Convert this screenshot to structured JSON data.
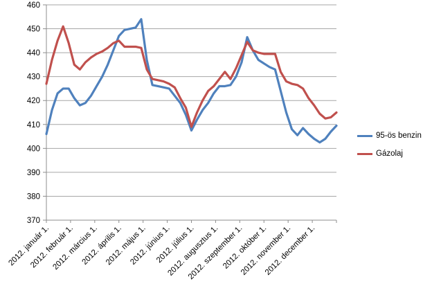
{
  "chart_data": {
    "type": "line",
    "title": "",
    "grid": true,
    "legend_position": "right",
    "x_axis": {
      "labels": [
        "2012. január 1.",
        "2012. február 1.",
        "2012. március 1.",
        "2012. április 1.",
        "2012. május 1.",
        "2012. június 1.",
        "2012. július 1.",
        "2012. augusztus 1.",
        "2012. szeptember 1.",
        "2012. október 1.",
        "2012. november 1.",
        "2012. december 1."
      ],
      "tick_count": 13,
      "points_per_interval": "weekly data, ~4.33 points per month"
    },
    "y_axis": {
      "min": 370,
      "max": 460,
      "step": 10,
      "tick_labels": [
        "370",
        "380",
        "390",
        "400",
        "410",
        "420",
        "430",
        "440",
        "450",
        "460"
      ]
    },
    "series": [
      {
        "name": "95-ös benzin",
        "color": "#4F81BD",
        "values": [
          406,
          416,
          423,
          425,
          425,
          421,
          418,
          419,
          422,
          426,
          430,
          435,
          441,
          447,
          449.5,
          450,
          450.5,
          454,
          437,
          426.5,
          426,
          425.5,
          425,
          422,
          419,
          414,
          407.5,
          412,
          416,
          419,
          423,
          426,
          426,
          426.5,
          430,
          436,
          446.5,
          441,
          437,
          435.5,
          434,
          433,
          424,
          415,
          408,
          405.5,
          408.5,
          406,
          404,
          402.5,
          404,
          407,
          409.5
        ]
      },
      {
        "name": "Gázolaj",
        "color": "#C0504D",
        "values": [
          427,
          437,
          445,
          451,
          444,
          435,
          433,
          436,
          438,
          439.5,
          440.5,
          442,
          444,
          445,
          442.5,
          442.5,
          442.5,
          442,
          433,
          429,
          428.5,
          428,
          427,
          425.5,
          421,
          417,
          409,
          415,
          420,
          424,
          426,
          429,
          432,
          429,
          433.5,
          439,
          444.5,
          441,
          440,
          439.5,
          439.5,
          439.5,
          432,
          428,
          427,
          426.5,
          425,
          421,
          418,
          414.5,
          412.5,
          413,
          415
        ]
      }
    ],
    "colors": {
      "gridline": "#a6a6a6",
      "axis": "#8c8c8c",
      "text": "#000000",
      "background": "#ffffff"
    }
  }
}
